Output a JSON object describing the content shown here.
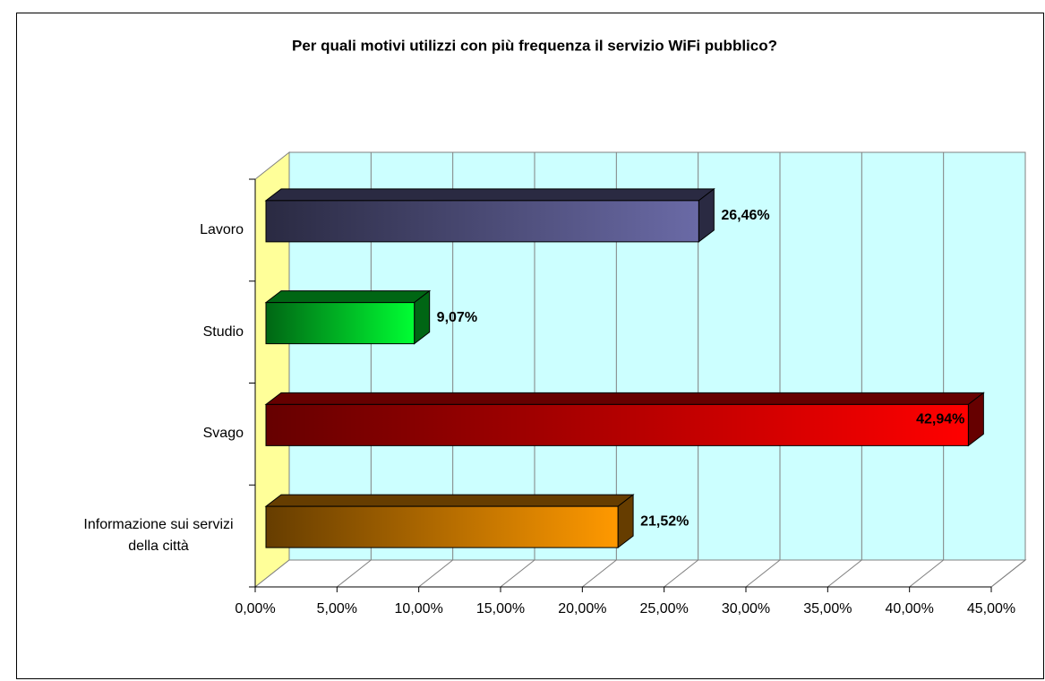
{
  "chart_data": {
    "type": "bar3d-horizontal",
    "title": "Per quali motivi utilizzi con più frequenza il servizio WiFi pubblico?",
    "title_color": "#ff0000",
    "categories": [
      "Lavoro",
      "Studio",
      "Svago",
      "Informazione sui servizi della città"
    ],
    "values": [
      26.46,
      9.07,
      42.94,
      21.52
    ],
    "value_labels": [
      "26,46%",
      "9,07%",
      "42,94%",
      "21,52%"
    ],
    "colors": [
      "#6a6aa6",
      "#00ff33",
      "#ff0000",
      "#ff9900"
    ],
    "xlim": [
      0,
      45
    ],
    "xticks": [
      {
        "value": 0,
        "label": "0,00%"
      },
      {
        "value": 5,
        "label": "5,00%"
      },
      {
        "value": 10,
        "label": "10,00%"
      },
      {
        "value": 15,
        "label": "15,00%"
      },
      {
        "value": 20,
        "label": "20,00%"
      },
      {
        "value": 25,
        "label": "25,00%"
      },
      {
        "value": 30,
        "label": "30,00%"
      },
      {
        "value": 35,
        "label": "35,00%"
      },
      {
        "value": 40,
        "label": "40,00%"
      },
      {
        "value": 45,
        "label": "45,00%"
      }
    ],
    "grid": true
  }
}
